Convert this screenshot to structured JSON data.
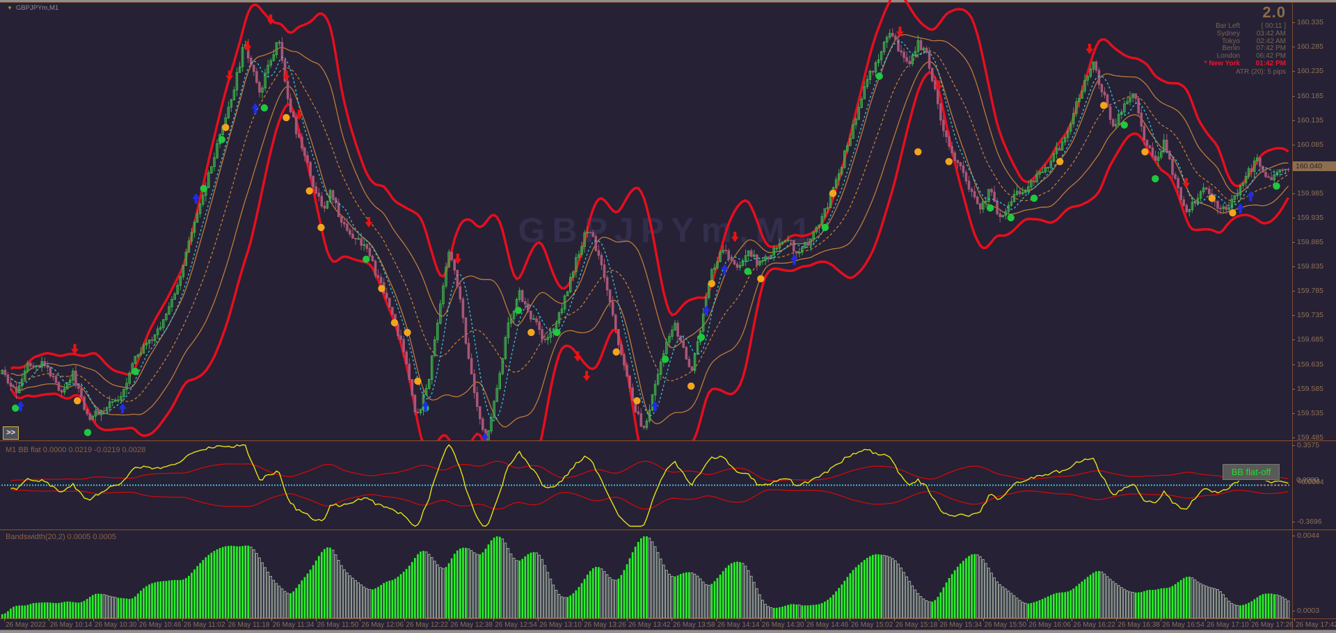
{
  "header": {
    "symbol_label": "GBPJPYm,M1",
    "dropdown_icon": "▼"
  },
  "watermark": "GBPJPYm,M1",
  "toolbar": {
    "collapse_label": ">>"
  },
  "info_panel": {
    "version": "2.0",
    "rows": [
      {
        "name": "Bar Left",
        "value": "[ 00:11 ]"
      },
      {
        "name": "Sydney",
        "value": "03:42 AM"
      },
      {
        "name": "Tokyo",
        "value": "02:42 AM"
      },
      {
        "name": "Berlin",
        "value": "07:42 PM"
      },
      {
        "name": "London",
        "value": "06:42 PM"
      },
      {
        "name": "* New York",
        "value": "01:42 PM",
        "highlight": true
      }
    ],
    "atr_line": "ATR (20): 5 pips"
  },
  "colors": {
    "background": "#262135",
    "separator": "#82492f",
    "candle_up": "#3fae4c",
    "candle_down": "#a85677",
    "outer_band": "#e60e1e",
    "inner_band": "#c07b38",
    "mid_ma": "#cf8436",
    "fast_ma": "#3cc3da",
    "buy_arrow": "#1f2de8",
    "sell_arrow": "#ea1212",
    "green_dot": "#1fc83e",
    "orange_dot": "#f4a41d",
    "bb_yellow": "#e7e313",
    "bb_red": "#cf0a0a",
    "bb_zero": "#3cc3da",
    "bb_zero_tail": "#909090",
    "hist_green": "#28f128",
    "hist_outline": "#9fae9f",
    "axis_text": "#8d7157",
    "current_tag_bg": "#8d6e4e"
  },
  "chart_data": [
    {
      "type": "candlestick",
      "title": "GBPJPYm,M1",
      "symbol": "GBPJPYm",
      "timeframe": "M1",
      "ylim": [
        159.479,
        160.381
      ],
      "y_ticks": [
        "160.335",
        "160.285",
        "160.235",
        "160.185",
        "160.135",
        "160.085",
        "159.985",
        "159.935",
        "159.885",
        "159.835",
        "159.785",
        "159.735",
        "159.685",
        "159.635",
        "159.585",
        "159.535",
        "159.485"
      ],
      "current_price": "160.040",
      "bars_per_x_tick": 16,
      "x_ticks": [
        "26 May 2022",
        "26 May 10:14",
        "26 May 10:30",
        "26 May 10:46",
        "26 May 11:02",
        "26 May 11:18",
        "26 May 11:34",
        "26 May 11:50",
        "26 May 12:06",
        "26 May 12:22",
        "26 May 12:38",
        "26 May 12:54",
        "26 May 13:10",
        "26 May 13:26",
        "26 May 13:42",
        "26 May 13:58",
        "26 May 14:14",
        "26 May 14:30",
        "26 May 14:46",
        "26 May 15:02",
        "26 May 15:18",
        "26 May 15:34",
        "26 May 15:50",
        "26 May 16:06",
        "26 May 16:22",
        "26 May 16:38",
        "26 May 16:54",
        "26 May 17:10",
        "26 May 17:26",
        "26 May 17:42"
      ],
      "price_path": [
        [
          0.0,
          159.615
        ],
        [
          0.01,
          159.575
        ],
        [
          0.02,
          159.64
        ],
        [
          0.033,
          159.635
        ],
        [
          0.045,
          159.58
        ],
        [
          0.055,
          159.615
        ],
        [
          0.067,
          159.525
        ],
        [
          0.08,
          159.545
        ],
        [
          0.092,
          159.57
        ],
        [
          0.103,
          159.65
        ],
        [
          0.115,
          159.68
        ],
        [
          0.125,
          159.72
        ],
        [
          0.135,
          159.79
        ],
        [
          0.145,
          159.88
        ],
        [
          0.155,
          159.97
        ],
        [
          0.165,
          160.06
        ],
        [
          0.175,
          160.15
        ],
        [
          0.183,
          160.23
        ],
        [
          0.188,
          160.29
        ],
        [
          0.195,
          160.24
        ],
        [
          0.201,
          160.19
        ],
        [
          0.208,
          160.26
        ],
        [
          0.215,
          160.3
        ],
        [
          0.222,
          160.18
        ],
        [
          0.23,
          160.1
        ],
        [
          0.24,
          160.02
        ],
        [
          0.249,
          159.95
        ],
        [
          0.256,
          159.99
        ],
        [
          0.263,
          159.93
        ],
        [
          0.272,
          159.9
        ],
        [
          0.282,
          159.88
        ],
        [
          0.292,
          159.81
        ],
        [
          0.302,
          159.75
        ],
        [
          0.312,
          159.66
        ],
        [
          0.322,
          159.53
        ],
        [
          0.33,
          159.58
        ],
        [
          0.34,
          159.75
        ],
        [
          0.347,
          159.87
        ],
        [
          0.355,
          159.79
        ],
        [
          0.362,
          159.65
        ],
        [
          0.37,
          159.53
        ],
        [
          0.376,
          159.48
        ],
        [
          0.383,
          159.56
        ],
        [
          0.392,
          159.7
        ],
        [
          0.402,
          159.78
        ],
        [
          0.412,
          159.73
        ],
        [
          0.422,
          159.68
        ],
        [
          0.432,
          159.73
        ],
        [
          0.442,
          159.81
        ],
        [
          0.45,
          159.88
        ],
        [
          0.456,
          159.92
        ],
        [
          0.463,
          159.86
        ],
        [
          0.47,
          159.79
        ],
        [
          0.478,
          159.69
        ],
        [
          0.486,
          159.6
        ],
        [
          0.494,
          159.53
        ],
        [
          0.5,
          159.5
        ],
        [
          0.508,
          159.6
        ],
        [
          0.516,
          159.68
        ],
        [
          0.523,
          159.72
        ],
        [
          0.53,
          159.66
        ],
        [
          0.536,
          159.62
        ],
        [
          0.544,
          159.72
        ],
        [
          0.552,
          159.83
        ],
        [
          0.56,
          159.87
        ],
        [
          0.57,
          159.83
        ],
        [
          0.58,
          159.86
        ],
        [
          0.59,
          159.84
        ],
        [
          0.6,
          159.87
        ],
        [
          0.61,
          159.89
        ],
        [
          0.62,
          159.86
        ],
        [
          0.63,
          159.9
        ],
        [
          0.64,
          159.95
        ],
        [
          0.65,
          160.02
        ],
        [
          0.66,
          160.11
        ],
        [
          0.67,
          160.2
        ],
        [
          0.68,
          160.26
        ],
        [
          0.69,
          160.31
        ],
        [
          0.698,
          160.28
        ],
        [
          0.705,
          160.25
        ],
        [
          0.712,
          160.295
        ],
        [
          0.72,
          160.26
        ],
        [
          0.728,
          160.16
        ],
        [
          0.736,
          160.08
        ],
        [
          0.744,
          160.04
        ],
        [
          0.752,
          159.99
        ],
        [
          0.76,
          159.95
        ],
        [
          0.768,
          159.99
        ],
        [
          0.776,
          159.93
        ],
        [
          0.784,
          159.97
        ],
        [
          0.792,
          159.99
        ],
        [
          0.802,
          160.01
        ],
        [
          0.812,
          160.04
        ],
        [
          0.822,
          160.08
        ],
        [
          0.832,
          160.14
        ],
        [
          0.842,
          160.22
        ],
        [
          0.848,
          160.25
        ],
        [
          0.856,
          160.19
        ],
        [
          0.864,
          160.12
        ],
        [
          0.872,
          160.16
        ],
        [
          0.88,
          160.185
        ],
        [
          0.888,
          160.1
        ],
        [
          0.896,
          160.05
        ],
        [
          0.904,
          160.09
        ],
        [
          0.912,
          160.01
        ],
        [
          0.92,
          159.95
        ],
        [
          0.928,
          159.97
        ],
        [
          0.936,
          160.0
        ],
        [
          0.944,
          159.96
        ],
        [
          0.952,
          159.95
        ],
        [
          0.96,
          159.985
        ],
        [
          0.968,
          160.025
        ],
        [
          0.976,
          160.055
        ],
        [
          0.984,
          160.01
        ],
        [
          0.992,
          160.03
        ],
        [
          1.0,
          160.04
        ]
      ],
      "overlays": [
        {
          "name": "outer-band",
          "style": "solid",
          "width": 3.5,
          "color": "#e60e1e"
        },
        {
          "name": "inner-band",
          "style": "solid",
          "width": 1.3,
          "color": "#c07b38"
        },
        {
          "name": "mid-ma-dashed",
          "style": "dashed",
          "width": 1.2,
          "color": "#cf8436"
        },
        {
          "name": "fast-ma-dashed",
          "style": "dashed",
          "width": 1.3,
          "color": "#3cc3da"
        }
      ],
      "signals": {
        "buy_arrows": [
          [
            0.016,
            159.56
          ],
          [
            0.095,
            159.555
          ],
          [
            0.152,
            159.985
          ],
          [
            0.198,
            160.17
          ],
          [
            0.33,
            159.56
          ],
          [
            0.376,
            159.495
          ],
          [
            0.508,
            159.56
          ],
          [
            0.548,
            159.755
          ],
          [
            0.562,
            159.84
          ],
          [
            0.616,
            159.86
          ],
          [
            0.962,
            159.965
          ],
          [
            0.97,
            159.99
          ]
        ],
        "sell_arrows": [
          [
            0.058,
            159.655
          ],
          [
            0.178,
            160.215
          ],
          [
            0.192,
            160.275
          ],
          [
            0.21,
            160.33
          ],
          [
            0.222,
            160.215
          ],
          [
            0.232,
            160.135
          ],
          [
            0.286,
            159.915
          ],
          [
            0.355,
            159.84
          ],
          [
            0.448,
            159.64
          ],
          [
            0.455,
            159.6
          ],
          [
            0.57,
            159.885
          ],
          [
            0.698,
            160.305
          ],
          [
            0.728,
            160.195
          ],
          [
            0.845,
            160.27
          ],
          [
            0.92,
            159.995
          ]
        ],
        "green_dots": [
          [
            0.012,
            159.545
          ],
          [
            0.068,
            159.495
          ],
          [
            0.105,
            159.62
          ],
          [
            0.158,
            159.995
          ],
          [
            0.172,
            160.095
          ],
          [
            0.205,
            160.16
          ],
          [
            0.284,
            159.85
          ],
          [
            0.33,
            159.545
          ],
          [
            0.402,
            159.745
          ],
          [
            0.432,
            159.7
          ],
          [
            0.516,
            159.645
          ],
          [
            0.544,
            159.69
          ],
          [
            0.58,
            159.825
          ],
          [
            0.64,
            159.915
          ],
          [
            0.682,
            160.225
          ],
          [
            0.768,
            159.955
          ],
          [
            0.784,
            159.935
          ],
          [
            0.802,
            159.975
          ],
          [
            0.872,
            160.125
          ],
          [
            0.896,
            160.015
          ],
          [
            0.99,
            160.0
          ]
        ],
        "orange_dots": [
          [
            0.06,
            159.56
          ],
          [
            0.175,
            160.12
          ],
          [
            0.222,
            160.14
          ],
          [
            0.24,
            159.99
          ],
          [
            0.249,
            159.915
          ],
          [
            0.296,
            159.79
          ],
          [
            0.306,
            159.72
          ],
          [
            0.316,
            159.7
          ],
          [
            0.324,
            159.6
          ],
          [
            0.412,
            159.7
          ],
          [
            0.478,
            159.66
          ],
          [
            0.494,
            159.56
          ],
          [
            0.536,
            159.59
          ],
          [
            0.552,
            159.8
          ],
          [
            0.59,
            159.81
          ],
          [
            0.646,
            159.985
          ],
          [
            0.712,
            160.07
          ],
          [
            0.736,
            160.05
          ],
          [
            0.822,
            160.05
          ],
          [
            0.856,
            160.165
          ],
          [
            0.888,
            160.07
          ],
          [
            0.94,
            159.975
          ],
          [
            0.956,
            159.945
          ]
        ]
      }
    },
    {
      "type": "line",
      "title": "M1 BB flat",
      "values_label": "M1 BB flat 0.0000 0.0219 -0.0219 0.0028",
      "ylim": [
        -0.3696,
        0.3575
      ],
      "y_ticks": [
        "0.3575",
        "-0.3696"
      ],
      "zero_cluster": [
        "0.0000",
        "0.0034",
        "-0.0004"
      ],
      "tag": "BB flat-off",
      "series": [
        {
          "name": "flat-line",
          "color": "#e7e313",
          "derived": "close minus SMA20 of main chart"
        },
        {
          "name": "upper-band",
          "color": "#cf0a0a",
          "derived": "+rolling stddev"
        },
        {
          "name": "lower-band",
          "color": "#cf0a0a",
          "derived": "-rolling stddev"
        },
        {
          "name": "zero-line",
          "color": "#3cc3da",
          "value": 0
        }
      ]
    },
    {
      "type": "bar",
      "title": "Bandswidth(20,2)",
      "values_label": "Bandswidth(20,2) 0.0005 0.0005",
      "ylim": [
        0.0003,
        0.0044
      ],
      "y_ticks": [
        "0.0044",
        "0.0003"
      ],
      "color": "#28f128",
      "derived": "rolling stddev(20) of close, scaled to ylim"
    }
  ]
}
